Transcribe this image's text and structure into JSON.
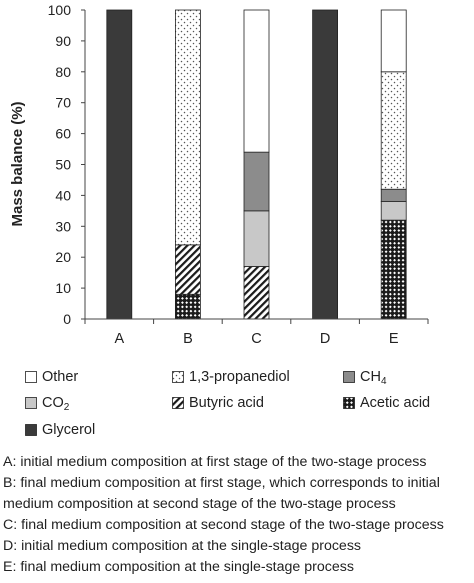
{
  "chart_data": {
    "type": "bar",
    "stacked": true,
    "ylabel": "Mass balance (%)",
    "ylim": [
      0,
      100
    ],
    "yticks": [
      0,
      10,
      20,
      30,
      40,
      50,
      60,
      70,
      80,
      90,
      100
    ],
    "categories": [
      "A",
      "B",
      "C",
      "D",
      "E"
    ],
    "series": [
      {
        "name": "Glycerol",
        "values": [
          100,
          0,
          0,
          100,
          0
        ],
        "fill": "solid",
        "color": "#3a3a3a"
      },
      {
        "name": "Acetic acid",
        "values": [
          0,
          8,
          0,
          0,
          32
        ],
        "fill": "checker",
        "color": "#1a1a1a"
      },
      {
        "name": "Butyric acid",
        "values": [
          0,
          16,
          17,
          0,
          0
        ],
        "fill": "diagonal",
        "color": "#1a1a1a"
      },
      {
        "name": "CO2",
        "values": [
          0,
          0,
          18,
          0,
          6
        ],
        "fill": "solid",
        "color": "#c8c8c8"
      },
      {
        "name": "CH4",
        "values": [
          0,
          0,
          19,
          0,
          4
        ],
        "fill": "solid",
        "color": "#8c8c8c"
      },
      {
        "name": "1,3-propanediol",
        "values": [
          0,
          76,
          0,
          0,
          38
        ],
        "fill": "dots",
        "color": "#d8d8d8"
      },
      {
        "name": "Other",
        "values": [
          0,
          0,
          46,
          0,
          20
        ],
        "fill": "solid",
        "color": "#ffffff"
      }
    ],
    "legend": {
      "rows": [
        [
          {
            "key": "Other",
            "label": "Other",
            "sub": ""
          },
          {
            "key": "1,3-propanediol",
            "label": "1,3-propanediol",
            "sub": ""
          },
          {
            "key": "CH4",
            "label": "CH",
            "sub": "4"
          }
        ],
        [
          {
            "key": "CO2",
            "label": "CO",
            "sub": "2"
          },
          {
            "key": "Butyric acid",
            "label": "Butyric acid",
            "sub": ""
          },
          {
            "key": "Acetic acid",
            "label": "Acetic acid",
            "sub": ""
          }
        ],
        [
          {
            "key": "Glycerol",
            "label": "Glycerol",
            "sub": ""
          }
        ]
      ],
      "placement": "bottom"
    }
  },
  "notes": [
    {
      "text": "A: initial medium composition at first stage of the two-stage process"
    },
    {
      "text": "B: final medium composition at first stage, which corresponds to initial"
    },
    {
      "text": "medium composition at second stage of the two-stage process"
    },
    {
      "text": "C: final medium composition at second stage of the two-stage process"
    },
    {
      "text": "D: initial medium composition at the single-stage process"
    },
    {
      "text": "E: final medium composition at the single-stage process"
    }
  ]
}
